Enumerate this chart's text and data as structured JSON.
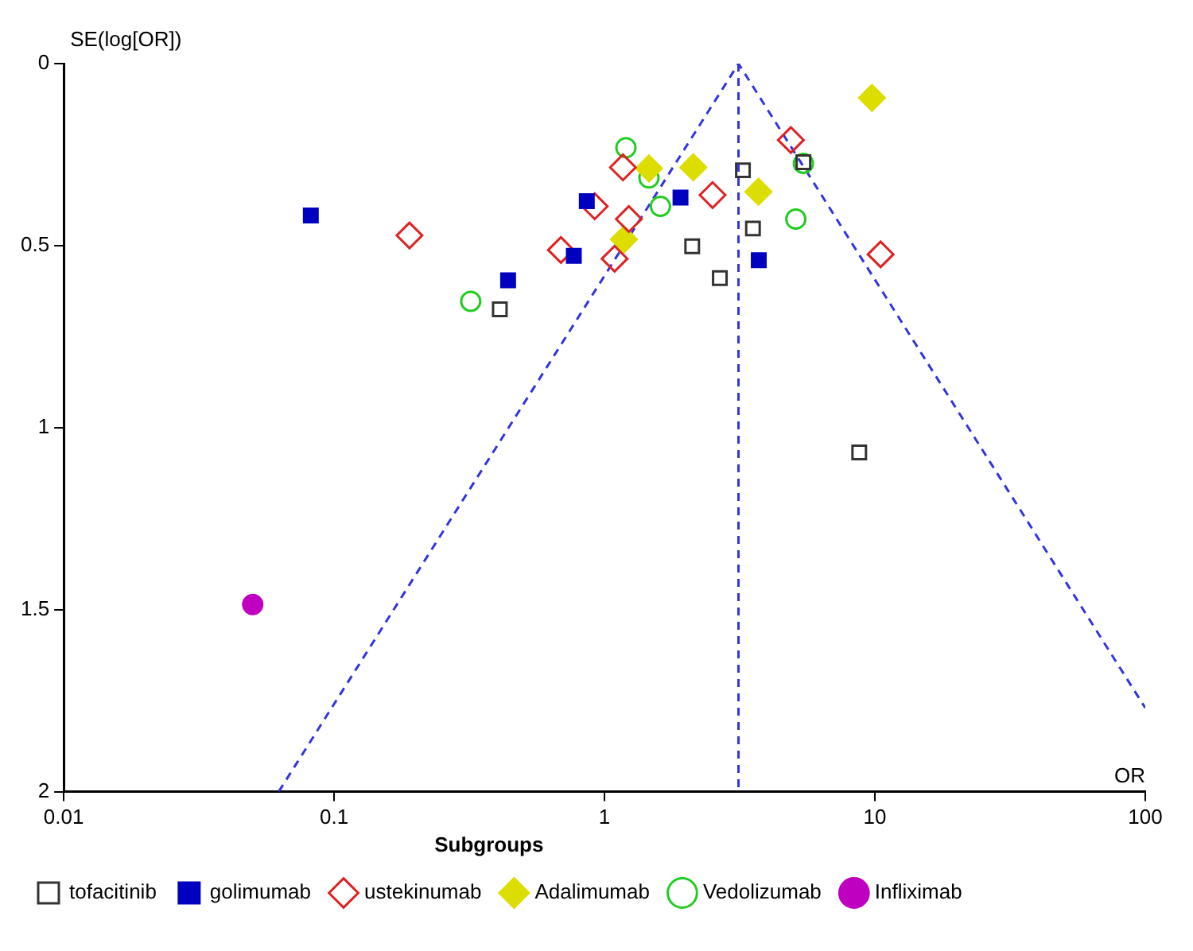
{
  "chart_data": {
    "type": "scatter",
    "xlabel": "OR",
    "ylabel": "SE(log[OR])",
    "legend_title": "Subgroups",
    "legend": "bottom",
    "log": "x",
    "grid": false,
    "xlim": [
      0.01,
      100
    ],
    "xticks": [
      0.01,
      0.1,
      1,
      10,
      100
    ],
    "ylim": [
      2,
      0
    ],
    "yticks": [
      0,
      0.5,
      1,
      1.5,
      2
    ],
    "ref_lines": [
      {
        "axis": "x",
        "value": 3.13,
        "color": "#3333dd",
        "line_style": "dashed"
      }
    ],
    "series": [
      {
        "name": "tofacitinib",
        "color": "#333333",
        "marker": "square",
        "x": [
          0.41,
          2.11,
          2.67,
          3.25,
          3.54,
          5.44,
          8.75
        ],
        "values": [
          0.675,
          0.502,
          0.589,
          0.293,
          0.453,
          0.271,
          1.068
        ]
      },
      {
        "name": "golimumab",
        "color": "#0000c0",
        "marker": "square",
        "x": [
          0.082,
          0.44,
          0.86,
          0.77,
          1.91,
          3.72
        ],
        "values": [
          0.417,
          0.595,
          0.378,
          0.528,
          0.368,
          0.54
        ]
      },
      {
        "name": "ustekinumab",
        "color": "#dd2222",
        "marker": "diamond",
        "x": [
          0.19,
          0.92,
          0.69,
          1.17,
          1.23,
          1.09,
          2.51,
          4.89,
          10.5
        ],
        "values": [
          0.472,
          0.392,
          0.512,
          0.285,
          0.427,
          0.536,
          0.361,
          0.21,
          0.524
        ]
      },
      {
        "name": "Adalimumab",
        "color": "#dddd00",
        "marker": "diamond",
        "x": [
          1.18,
          1.46,
          2.13,
          3.71,
          9.75
        ],
        "values": [
          0.483,
          0.288,
          0.285,
          0.352,
          0.094
        ]
      },
      {
        "name": "Vedolizumab",
        "color": "#22cc22",
        "marker": "circle",
        "x": [
          0.32,
          1.2,
          1.46,
          1.61,
          5.44,
          5.1
        ],
        "values": [
          0.653,
          0.231,
          0.314,
          0.392,
          0.274,
          0.427
        ]
      },
      {
        "name": "Infliximab",
        "color": "#c000c0",
        "marker": "circle",
        "x": [
          0.05
        ],
        "values": [
          1.486
        ]
      },
      {
        "type": "line",
        "color": "#3333dd",
        "marker": "none",
        "line_style": "dashed",
        "x": [
          0.0624,
          3.13,
          100
        ],
        "values": [
          2,
          0,
          1.77
        ]
      }
    ]
  }
}
